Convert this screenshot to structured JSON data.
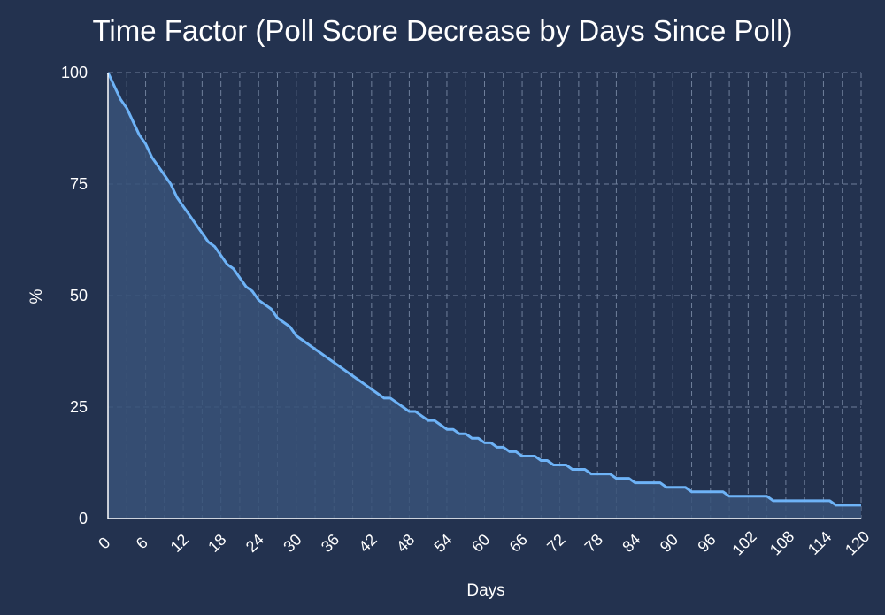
{
  "chart_data": {
    "type": "area",
    "title": "Time Factor (Poll Score Decrease by Days Since Poll)",
    "xlabel": "Days",
    "ylabel": "%",
    "xlim": [
      0,
      120
    ],
    "ylim": [
      0,
      100
    ],
    "x_ticks": [
      0,
      6,
      12,
      18,
      24,
      30,
      36,
      42,
      48,
      54,
      60,
      66,
      72,
      78,
      84,
      90,
      96,
      102,
      108,
      114,
      120
    ],
    "y_ticks": [
      0,
      25,
      50,
      75,
      100
    ],
    "grid": true,
    "colors": {
      "background": "#23324f",
      "line": "#6eb3f7",
      "fill": "#385278",
      "grid": "#6f7f9b"
    },
    "series": [
      {
        "x": [
          0,
          1,
          2,
          3,
          4,
          5,
          6,
          7,
          8,
          9,
          10,
          11,
          12,
          13,
          14,
          15,
          16,
          17,
          18,
          19,
          20,
          21,
          22,
          23,
          24,
          25,
          26,
          27,
          28,
          29,
          30,
          31,
          32,
          33,
          34,
          35,
          36,
          37,
          38,
          39,
          40,
          41,
          42,
          43,
          44,
          45,
          46,
          47,
          48,
          49,
          50,
          51,
          52,
          53,
          54,
          55,
          56,
          57,
          58,
          59,
          60,
          61,
          62,
          63,
          64,
          65,
          66,
          67,
          68,
          69,
          70,
          71,
          72,
          73,
          74,
          75,
          76,
          77,
          78,
          79,
          80,
          81,
          82,
          83,
          84,
          85,
          86,
          87,
          88,
          89,
          90,
          91,
          92,
          93,
          94,
          95,
          96,
          97,
          98,
          99,
          100,
          101,
          102,
          103,
          104,
          105,
          106,
          107,
          108,
          109,
          110,
          111,
          112,
          113,
          114,
          115,
          116,
          117,
          118,
          119,
          120
        ],
        "y": [
          100,
          97,
          94,
          92,
          89,
          86,
          84,
          81,
          79,
          77,
          75,
          72,
          70,
          68,
          66,
          64,
          62,
          61,
          59,
          57,
          56,
          54,
          52,
          51,
          49,
          48,
          47,
          45,
          44,
          43,
          41,
          40,
          39,
          38,
          37,
          36,
          35,
          34,
          33,
          32,
          31,
          30,
          29,
          28,
          27,
          27,
          26,
          25,
          24,
          24,
          23,
          22,
          22,
          21,
          20,
          20,
          19,
          19,
          18,
          18,
          17,
          17,
          16,
          16,
          15,
          15,
          14,
          14,
          14,
          13,
          13,
          12,
          12,
          12,
          11,
          11,
          11,
          10,
          10,
          10,
          10,
          9,
          9,
          9,
          8,
          8,
          8,
          8,
          8,
          7,
          7,
          7,
          7,
          6,
          6,
          6,
          6,
          6,
          6,
          5,
          5,
          5,
          5,
          5,
          5,
          5,
          4,
          4,
          4,
          4,
          4,
          4,
          4,
          4,
          4,
          4,
          3,
          3,
          3,
          3,
          3
        ]
      }
    ]
  }
}
